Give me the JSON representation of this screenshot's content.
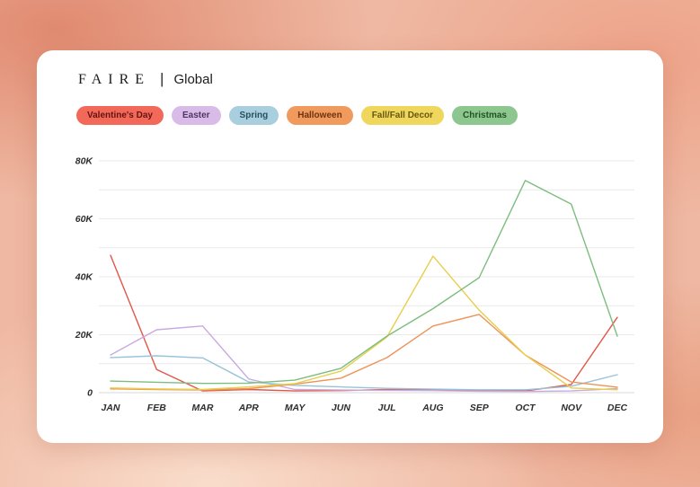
{
  "header": {
    "brand": "FAIRE",
    "divider": "|",
    "scope": "Global"
  },
  "legend": [
    {
      "label": "Valentine's Day",
      "bg": "#f2695a",
      "text": "#641410"
    },
    {
      "label": "Easter",
      "bg": "#d9bbe8",
      "text": "#4f3564"
    },
    {
      "label": "Spring",
      "bg": "#a9cede",
      "text": "#25505f"
    },
    {
      "label": "Halloween",
      "bg": "#f09a5e",
      "text": "#6e3310"
    },
    {
      "label": "Fall/Fall Decor",
      "bg": "#eed75c",
      "text": "#69570f"
    },
    {
      "label": "Christmas",
      "bg": "#8dc68f",
      "text": "#1f5423"
    }
  ],
  "chart_data": {
    "type": "line",
    "categories": [
      "JAN",
      "FEB",
      "MAR",
      "APR",
      "MAY",
      "JUN",
      "JUL",
      "AUG",
      "SEP",
      "OCT",
      "NOV",
      "DEC"
    ],
    "series": [
      {
        "name": "Valentine's Day",
        "color": "#e1564a",
        "values": [
          47400,
          8000,
          600,
          1100,
          600,
          700,
          1100,
          1100,
          700,
          600,
          2800,
          26000
        ]
      },
      {
        "name": "Easter",
        "color": "#c9a9df",
        "values": [
          13000,
          21700,
          23000,
          4700,
          1100,
          900,
          800,
          700,
          500,
          400,
          600,
          1400
        ]
      },
      {
        "name": "Spring",
        "color": "#96c3d8",
        "values": [
          12100,
          12700,
          12000,
          3700,
          2500,
          2000,
          1500,
          1200,
          1000,
          1000,
          2200,
          6200
        ]
      },
      {
        "name": "Halloween",
        "color": "#ee9356",
        "values": [
          1300,
          1100,
          900,
          1400,
          2900,
          5000,
          12100,
          23000,
          27000,
          13000,
          3700,
          1900
        ]
      },
      {
        "name": "Fall/Fall Decor",
        "color": "#e7cf4d",
        "values": [
          1600,
          1300,
          1100,
          2000,
          3100,
          7400,
          19200,
          47100,
          28500,
          13000,
          1600,
          1000
        ]
      },
      {
        "name": "Christmas",
        "color": "#7dbd7e",
        "values": [
          4000,
          3600,
          3200,
          3300,
          4300,
          8400,
          19500,
          29000,
          39700,
          73200,
          65100,
          19500
        ]
      }
    ],
    "ylim": [
      0,
      80000
    ],
    "grid_step": 10000,
    "yticks": [
      0,
      20000,
      40000,
      60000,
      80000
    ],
    "ytick_labels": [
      "0",
      "20K",
      "40K",
      "60K",
      "80K"
    ],
    "legend_position": "top",
    "grid": "horizontal"
  }
}
